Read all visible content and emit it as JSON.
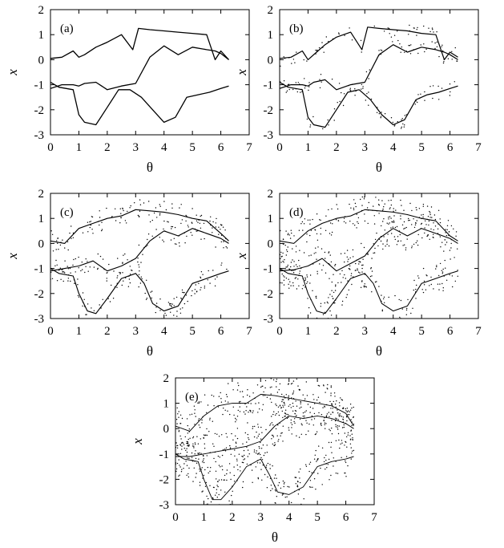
{
  "chart_data": [
    {
      "type": "scatter",
      "panel_label": "(a)",
      "xlabel": "θ",
      "ylabel": "x",
      "xlim": [
        0,
        7
      ],
      "ylim": [
        -3,
        2
      ],
      "xticks": [
        0,
        1,
        2,
        3,
        4,
        5,
        6,
        7
      ],
      "yticks": [
        -3,
        -2,
        -1,
        0,
        1,
        2
      ],
      "grid": false,
      "density": 0,
      "series": [
        {
          "x": [
            0,
            0.4,
            0.8,
            1.0,
            1.2,
            1.6,
            2.0,
            2.5,
            2.9,
            3.1,
            3.5,
            4.0,
            4.5,
            5.0,
            5.5,
            5.8,
            6.0,
            6.28
          ],
          "y": [
            0.05,
            0.1,
            0.35,
            0.1,
            0.2,
            0.5,
            0.7,
            1.0,
            0.4,
            1.25,
            1.2,
            1.15,
            1.1,
            1.05,
            1.0,
            0.0,
            0.35,
            0.0
          ]
        },
        {
          "x": [
            0,
            0.4,
            0.8,
            1.0,
            1.2,
            1.6,
            2.0,
            2.5,
            3.0,
            3.5,
            4.0,
            4.5,
            5.0,
            5.5,
            5.8,
            6.0,
            6.28
          ],
          "y": [
            -1.15,
            -1.0,
            -1.0,
            -1.05,
            -0.95,
            -0.9,
            -1.2,
            -1.05,
            -0.95,
            0.1,
            0.55,
            0.2,
            0.5,
            0.4,
            0.35,
            0.25,
            0.0
          ]
        },
        {
          "x": [
            0,
            0.3,
            0.8,
            1.0,
            1.2,
            1.6,
            2.0,
            2.4,
            2.8,
            3.2,
            3.6,
            4.0,
            4.4,
            4.8,
            5.2,
            5.6,
            6.0,
            6.28
          ],
          "y": [
            -0.9,
            -1.1,
            -1.2,
            -2.2,
            -2.5,
            -2.6,
            -1.9,
            -1.2,
            -1.2,
            -1.5,
            -2.0,
            -2.5,
            -2.3,
            -1.5,
            -1.4,
            -1.3,
            -1.15,
            -1.05
          ]
        }
      ]
    },
    {
      "type": "scatter",
      "panel_label": "(b)",
      "xlabel": "θ",
      "ylabel": "x",
      "xlim": [
        0,
        7
      ],
      "ylim": [
        -3,
        2
      ],
      "xticks": [
        0,
        1,
        2,
        3,
        4,
        5,
        6,
        7
      ],
      "yticks": [
        -3,
        -2,
        -1,
        0,
        1,
        2
      ],
      "grid": false,
      "density": 0.18,
      "series": [
        {
          "x": [
            0,
            0.4,
            0.8,
            1.0,
            1.3,
            1.6,
            2.0,
            2.5,
            2.9,
            3.1,
            3.5,
            4.0,
            4.5,
            5.0,
            5.5,
            5.8,
            6.0,
            6.28
          ],
          "y": [
            0.05,
            0.1,
            0.35,
            0.0,
            0.3,
            0.6,
            0.9,
            1.1,
            0.4,
            1.3,
            1.25,
            1.2,
            1.15,
            1.05,
            1.0,
            0.0,
            0.3,
            0.1
          ]
        },
        {
          "x": [
            0,
            0.4,
            0.8,
            1.0,
            1.2,
            1.6,
            2.0,
            2.5,
            3.0,
            3.5,
            4.0,
            4.5,
            5.0,
            5.5,
            5.8,
            6.0,
            6.28
          ],
          "y": [
            -1.15,
            -1.0,
            -1.0,
            -1.05,
            -0.9,
            -0.8,
            -1.2,
            -1.0,
            -0.9,
            0.2,
            0.6,
            0.3,
            0.5,
            0.4,
            0.3,
            0.2,
            0.0
          ]
        },
        {
          "x": [
            0,
            0.3,
            0.8,
            1.0,
            1.2,
            1.6,
            2.0,
            2.4,
            2.8,
            3.2,
            3.6,
            4.0,
            4.4,
            4.8,
            5.2,
            5.6,
            6.0,
            6.28
          ],
          "y": [
            -0.9,
            -1.1,
            -1.2,
            -2.3,
            -2.6,
            -2.7,
            -2.0,
            -1.3,
            -1.2,
            -1.6,
            -2.2,
            -2.6,
            -2.4,
            -1.6,
            -1.4,
            -1.3,
            -1.15,
            -1.05
          ]
        }
      ]
    },
    {
      "type": "scatter",
      "panel_label": "(c)",
      "xlabel": "θ",
      "ylabel": "x",
      "xlim": [
        0,
        7
      ],
      "ylim": [
        -3,
        2
      ],
      "xticks": [
        0,
        1,
        2,
        3,
        4,
        5,
        6,
        7
      ],
      "yticks": [
        -3,
        -2,
        -1,
        0,
        1,
        2
      ],
      "grid": false,
      "density": 0.32,
      "series": [
        {
          "x": [
            0,
            0.5,
            1.0,
            1.5,
            2.0,
            2.5,
            3.0,
            3.5,
            4.0,
            4.5,
            5.0,
            5.5,
            6.0,
            6.28
          ],
          "y": [
            0.1,
            0.0,
            0.6,
            0.8,
            1.0,
            1.1,
            1.35,
            1.3,
            1.25,
            1.15,
            1.0,
            0.9,
            0.4,
            0.1
          ]
        },
        {
          "x": [
            0,
            0.5,
            1.0,
            1.5,
            2.0,
            2.5,
            3.0,
            3.5,
            4.0,
            4.5,
            5.0,
            5.5,
            6.0,
            6.28
          ],
          "y": [
            -1.1,
            -1.0,
            -0.9,
            -0.7,
            -1.1,
            -0.9,
            -0.6,
            0.1,
            0.5,
            0.3,
            0.6,
            0.4,
            0.2,
            0.0
          ]
        },
        {
          "x": [
            0,
            0.3,
            0.8,
            1.0,
            1.3,
            1.6,
            2.0,
            2.5,
            3.0,
            3.3,
            3.6,
            4.0,
            4.5,
            5.0,
            5.5,
            6.0,
            6.28
          ],
          "y": [
            -1.0,
            -1.2,
            -1.3,
            -2.0,
            -2.7,
            -2.8,
            -2.2,
            -1.4,
            -1.2,
            -1.6,
            -2.4,
            -2.7,
            -2.5,
            -1.6,
            -1.4,
            -1.2,
            -1.1
          ]
        }
      ]
    },
    {
      "type": "scatter",
      "panel_label": "(d)",
      "xlabel": "θ",
      "ylabel": "x",
      "xlim": [
        0,
        7
      ],
      "ylim": [
        -3,
        2
      ],
      "xticks": [
        0,
        1,
        2,
        3,
        4,
        5,
        6,
        7
      ],
      "yticks": [
        -3,
        -2,
        -1,
        0,
        1,
        2
      ],
      "grid": false,
      "density": 0.5,
      "series": [
        {
          "x": [
            0,
            0.5,
            1.0,
            1.5,
            2.0,
            2.5,
            3.0,
            3.5,
            4.0,
            4.5,
            5.0,
            5.5,
            6.0,
            6.28
          ],
          "y": [
            0.1,
            0.0,
            0.5,
            0.8,
            1.0,
            1.1,
            1.35,
            1.3,
            1.25,
            1.15,
            1.0,
            0.9,
            0.3,
            0.1
          ]
        },
        {
          "x": [
            0,
            0.5,
            1.0,
            1.5,
            2.0,
            2.5,
            3.0,
            3.5,
            4.0,
            4.5,
            5.0,
            5.5,
            6.0,
            6.28
          ],
          "y": [
            -1.1,
            -1.05,
            -0.9,
            -0.6,
            -1.1,
            -0.8,
            -0.5,
            0.2,
            0.6,
            0.3,
            0.6,
            0.4,
            0.2,
            0.0
          ]
        },
        {
          "x": [
            0,
            0.3,
            0.8,
            1.0,
            1.3,
            1.6,
            2.0,
            2.5,
            3.0,
            3.3,
            3.6,
            4.0,
            4.5,
            5.0,
            5.5,
            6.0,
            6.28
          ],
          "y": [
            -1.0,
            -1.2,
            -1.3,
            -2.0,
            -2.7,
            -2.8,
            -2.2,
            -1.4,
            -1.2,
            -1.6,
            -2.4,
            -2.7,
            -2.5,
            -1.6,
            -1.4,
            -1.2,
            -1.1
          ]
        }
      ]
    },
    {
      "type": "scatter",
      "panel_label": "(e)",
      "xlabel": "θ",
      "ylabel": "x",
      "xlim": [
        0,
        7
      ],
      "ylim": [
        -3,
        2
      ],
      "xticks": [
        0,
        1,
        2,
        3,
        4,
        5,
        6,
        7
      ],
      "yticks": [
        -3,
        -2,
        -1,
        0,
        1,
        2
      ],
      "grid": false,
      "density": 0.75,
      "series": [
        {
          "x": [
            0,
            0.5,
            1.0,
            1.5,
            2.0,
            2.5,
            3.0,
            3.5,
            4.0,
            4.5,
            5.0,
            5.5,
            6.0,
            6.28
          ],
          "y": [
            0.1,
            -0.1,
            0.5,
            0.9,
            1.0,
            1.0,
            1.35,
            1.3,
            1.2,
            1.1,
            1.0,
            0.9,
            0.6,
            0.1
          ]
        },
        {
          "x": [
            0,
            0.5,
            1.0,
            1.5,
            2.0,
            2.5,
            3.0,
            3.5,
            4.0,
            4.5,
            5.0,
            5.5,
            6.0,
            6.28
          ],
          "y": [
            -1.1,
            -1.1,
            -1.0,
            -0.9,
            -0.8,
            -0.7,
            -0.5,
            0.1,
            0.5,
            0.4,
            0.5,
            0.4,
            0.2,
            0.0
          ]
        },
        {
          "x": [
            0,
            0.3,
            0.8,
            1.0,
            1.3,
            1.6,
            2.0,
            2.5,
            3.0,
            3.3,
            3.6,
            4.0,
            4.5,
            5.0,
            5.5,
            6.0,
            6.28
          ],
          "y": [
            -1.0,
            -1.2,
            -1.3,
            -2.0,
            -2.8,
            -2.8,
            -2.3,
            -1.5,
            -1.2,
            -1.8,
            -2.5,
            -2.6,
            -2.3,
            -1.5,
            -1.3,
            -1.2,
            -1.1
          ]
        }
      ]
    }
  ]
}
